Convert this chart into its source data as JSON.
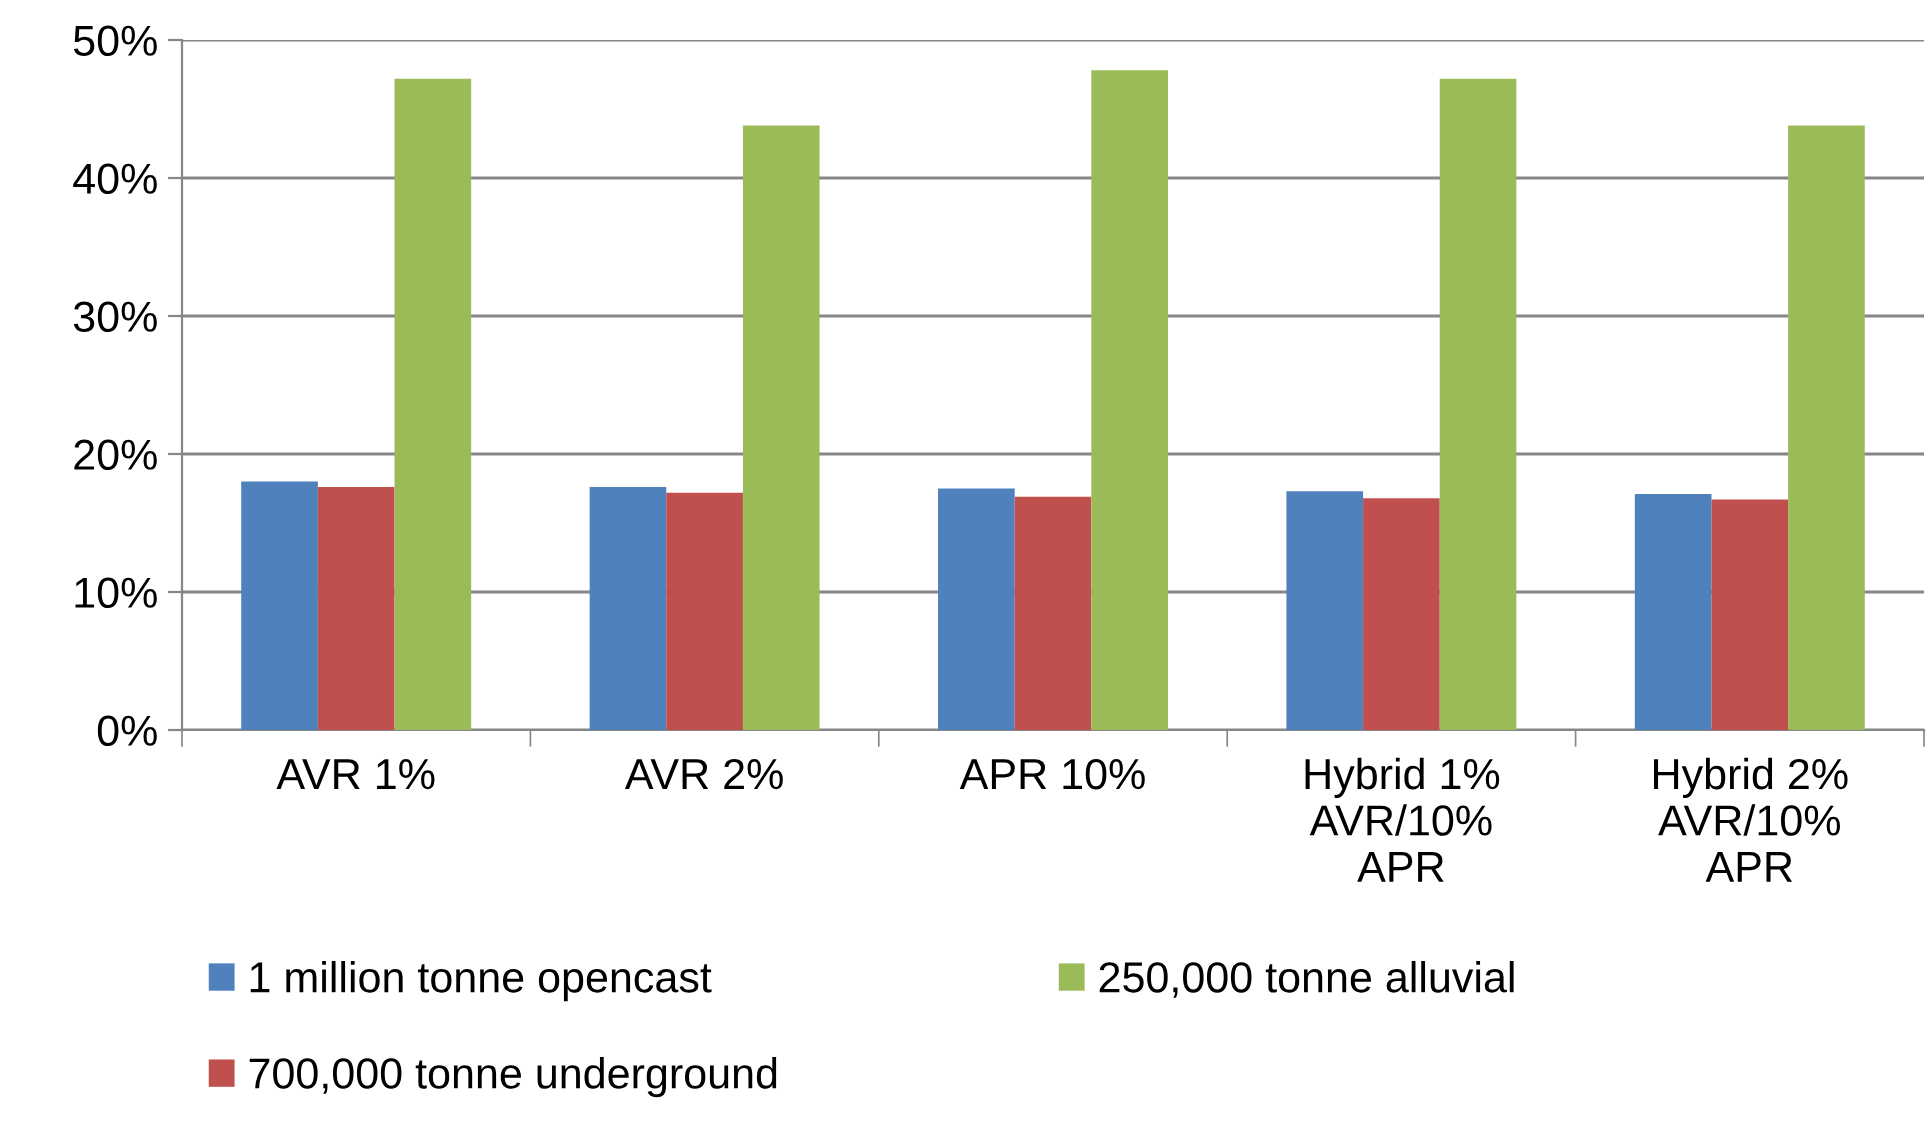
{
  "chart_data": {
    "type": "bar",
    "categories": [
      "AVR 1%",
      "AVR 2%",
      "APR 10%",
      "Hybrid 1%\nAVR/10%\nAPR",
      "Hybrid 2%\nAVR/10%\nAPR"
    ],
    "series": [
      {
        "name": "1 million tonne opencast",
        "color": "#4f81bd",
        "values": [
          18.0,
          17.6,
          17.5,
          17.3,
          17.1
        ]
      },
      {
        "name": "700,000 tonne underground",
        "color": "#c0504d",
        "values": [
          17.6,
          17.2,
          16.9,
          16.8,
          16.7
        ]
      },
      {
        "name": "250,000 tonne alluvial",
        "color": "#9bbb59",
        "values": [
          47.2,
          43.8,
          47.8,
          47.2,
          43.8
        ]
      }
    ],
    "ylim": [
      0,
      50
    ],
    "yticks": [
      {
        "value": 0,
        "label": "0%"
      },
      {
        "value": 10,
        "label": "10%"
      },
      {
        "value": 20,
        "label": "20%"
      },
      {
        "value": 30,
        "label": "30%"
      },
      {
        "value": 40,
        "label": "40%"
      },
      {
        "value": 50,
        "label": "50%"
      }
    ],
    "grid": "y",
    "legend": "bottom"
  }
}
